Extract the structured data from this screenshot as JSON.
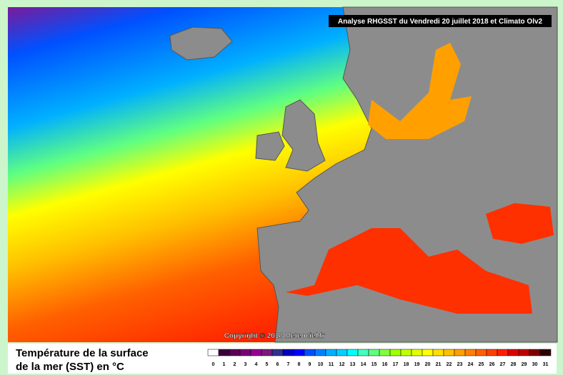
{
  "header": {
    "title": "Analyse RHGSST  du Vendredi 20 juillet 2018 et Climato Olv2"
  },
  "map": {
    "copyright": "Copyright © 2018 Meteociel.fr"
  },
  "caption": {
    "lines": [
      "Température de la surface",
      "de la mer (SST) en °C"
    ]
  },
  "legend": {
    "items": [
      {
        "label": 0,
        "color": "#ffffff"
      },
      {
        "label": 1,
        "color": "#3c003c"
      },
      {
        "label": 2,
        "color": "#5a005a"
      },
      {
        "label": 3,
        "color": "#780078"
      },
      {
        "label": 4,
        "color": "#960096"
      },
      {
        "label": 5,
        "color": "#7a1a7a"
      },
      {
        "label": 6,
        "color": "#303090"
      },
      {
        "label": 7,
        "color": "#0000c0"
      },
      {
        "label": 8,
        "color": "#0000ff"
      },
      {
        "label": 9,
        "color": "#0050ff"
      },
      {
        "label": 10,
        "color": "#0080ff"
      },
      {
        "label": 11,
        "color": "#00b0ff"
      },
      {
        "label": 12,
        "color": "#00d0ff"
      },
      {
        "label": 13,
        "color": "#00ffff"
      },
      {
        "label": 14,
        "color": "#40ffc0"
      },
      {
        "label": 15,
        "color": "#60ff80"
      },
      {
        "label": 16,
        "color": "#80ff40"
      },
      {
        "label": 17,
        "color": "#a0ff00"
      },
      {
        "label": 18,
        "color": "#c0ff00"
      },
      {
        "label": 19,
        "color": "#e0ff00"
      },
      {
        "label": 20,
        "color": "#ffff00"
      },
      {
        "label": 21,
        "color": "#ffe000"
      },
      {
        "label": 22,
        "color": "#ffc000"
      },
      {
        "label": 23,
        "color": "#ffa000"
      },
      {
        "label": 24,
        "color": "#ff8000"
      },
      {
        "label": 25,
        "color": "#ff6000"
      },
      {
        "label": 26,
        "color": "#ff4000"
      },
      {
        "label": 27,
        "color": "#ff2000"
      },
      {
        "label": 28,
        "color": "#e00000"
      },
      {
        "label": 29,
        "color": "#c00000"
      },
      {
        "label": 30,
        "color": "#800000"
      },
      {
        "label": 31,
        "color": "#300000"
      }
    ]
  }
}
